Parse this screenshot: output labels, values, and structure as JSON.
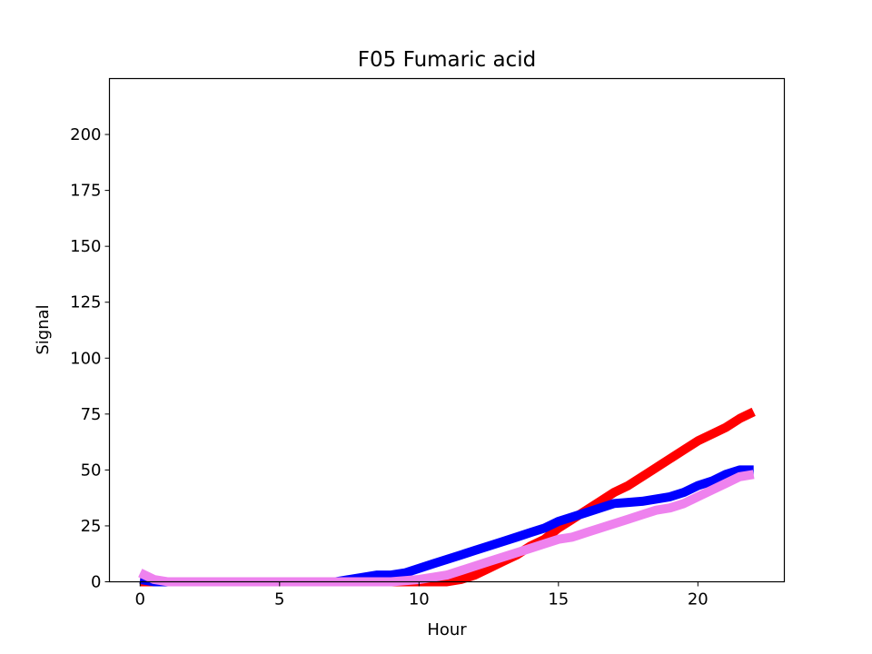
{
  "chart_data": {
    "type": "line",
    "title": "F05 Fumaric acid",
    "xlabel": "Hour",
    "ylabel": "Signal",
    "xlim": [
      -1.1,
      23.1
    ],
    "ylim": [
      0,
      225
    ],
    "xticks": [
      0,
      5,
      10,
      15,
      20
    ],
    "yticks": [
      0,
      25,
      50,
      75,
      100,
      125,
      150,
      175,
      200
    ],
    "grid": false,
    "legend": "none",
    "series": [
      {
        "color": "#ff0000",
        "x": [
          0,
          1,
          2,
          3,
          4,
          5,
          6,
          7,
          8,
          9,
          10,
          10.5,
          11,
          11.5,
          12,
          12.5,
          13,
          13.5,
          14,
          14.5,
          15,
          15.5,
          16,
          16.5,
          17,
          17.5,
          18,
          18.5,
          19,
          19.5,
          20,
          20.5,
          21,
          21.5,
          22
        ],
        "y": [
          0,
          0,
          0,
          0,
          0,
          0,
          0,
          0,
          0,
          0,
          0,
          0,
          0,
          1,
          3,
          6,
          9,
          12,
          16,
          19,
          24,
          28,
          32,
          36,
          40,
          43,
          47,
          51,
          55,
          59,
          63,
          66,
          69,
          73,
          76
        ]
      },
      {
        "color": "#0000ff",
        "x": [
          0,
          0.5,
          1,
          2,
          3,
          4,
          5,
          6,
          7,
          7.5,
          8,
          8.5,
          9,
          9.5,
          10,
          10.5,
          11,
          11.5,
          12,
          12.5,
          13,
          13.5,
          14,
          14.5,
          15,
          15.5,
          16,
          16.5,
          17,
          17.5,
          18,
          18.5,
          19,
          19.5,
          20,
          20.5,
          21,
          21.5,
          22
        ],
        "y": [
          1,
          0,
          0,
          0,
          0,
          0,
          0,
          0,
          0,
          1,
          2,
          3,
          3,
          4,
          6,
          8,
          10,
          12,
          14,
          16,
          18,
          20,
          22,
          24,
          27,
          29,
          31,
          33,
          35,
          35.5,
          36,
          37,
          38,
          40,
          43,
          45,
          48,
          50,
          50
        ]
      },
      {
        "color": "#ee82ee",
        "x": [
          0,
          0.5,
          1,
          2,
          3,
          4,
          5,
          6,
          7,
          8,
          9,
          10,
          10.5,
          11,
          11.5,
          12,
          12.5,
          13,
          13.5,
          14,
          14.5,
          15,
          15.5,
          16,
          16.5,
          17,
          17.5,
          18,
          18.5,
          19,
          19.5,
          20,
          20.5,
          21,
          21.5,
          22
        ],
        "y": [
          4,
          1,
          0,
          0,
          0,
          0,
          0,
          0,
          0,
          0,
          0,
          1,
          2,
          3,
          5,
          7,
          9,
          11,
          13,
          15,
          17,
          19,
          20,
          22,
          24,
          26,
          28,
          30,
          32,
          33,
          35,
          38,
          41,
          44,
          47,
          48
        ]
      }
    ]
  }
}
